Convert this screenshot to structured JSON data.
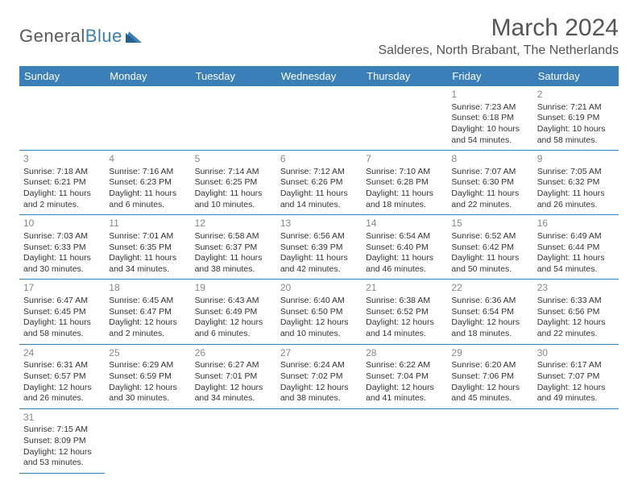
{
  "logo": {
    "text1": "General",
    "text2": "Blue"
  },
  "title": "March 2024",
  "location": "Salderes, North Brabant, The Netherlands",
  "colors": {
    "header_bg": "#3b7fb8",
    "header_fg": "#ffffff",
    "border": "#3b7fb8",
    "text": "#333333",
    "daynum": "#888888"
  },
  "weekdays": [
    "Sunday",
    "Monday",
    "Tuesday",
    "Wednesday",
    "Thursday",
    "Friday",
    "Saturday"
  ],
  "weeks": [
    [
      null,
      null,
      null,
      null,
      null,
      {
        "n": "1",
        "sr": "Sunrise: 7:23 AM",
        "ss": "Sunset: 6:18 PM",
        "dl": "Daylight: 10 hours and 54 minutes."
      },
      {
        "n": "2",
        "sr": "Sunrise: 7:21 AM",
        "ss": "Sunset: 6:19 PM",
        "dl": "Daylight: 10 hours and 58 minutes."
      }
    ],
    [
      {
        "n": "3",
        "sr": "Sunrise: 7:18 AM",
        "ss": "Sunset: 6:21 PM",
        "dl": "Daylight: 11 hours and 2 minutes."
      },
      {
        "n": "4",
        "sr": "Sunrise: 7:16 AM",
        "ss": "Sunset: 6:23 PM",
        "dl": "Daylight: 11 hours and 6 minutes."
      },
      {
        "n": "5",
        "sr": "Sunrise: 7:14 AM",
        "ss": "Sunset: 6:25 PM",
        "dl": "Daylight: 11 hours and 10 minutes."
      },
      {
        "n": "6",
        "sr": "Sunrise: 7:12 AM",
        "ss": "Sunset: 6:26 PM",
        "dl": "Daylight: 11 hours and 14 minutes."
      },
      {
        "n": "7",
        "sr": "Sunrise: 7:10 AM",
        "ss": "Sunset: 6:28 PM",
        "dl": "Daylight: 11 hours and 18 minutes."
      },
      {
        "n": "8",
        "sr": "Sunrise: 7:07 AM",
        "ss": "Sunset: 6:30 PM",
        "dl": "Daylight: 11 hours and 22 minutes."
      },
      {
        "n": "9",
        "sr": "Sunrise: 7:05 AM",
        "ss": "Sunset: 6:32 PM",
        "dl": "Daylight: 11 hours and 26 minutes."
      }
    ],
    [
      {
        "n": "10",
        "sr": "Sunrise: 7:03 AM",
        "ss": "Sunset: 6:33 PM",
        "dl": "Daylight: 11 hours and 30 minutes."
      },
      {
        "n": "11",
        "sr": "Sunrise: 7:01 AM",
        "ss": "Sunset: 6:35 PM",
        "dl": "Daylight: 11 hours and 34 minutes."
      },
      {
        "n": "12",
        "sr": "Sunrise: 6:58 AM",
        "ss": "Sunset: 6:37 PM",
        "dl": "Daylight: 11 hours and 38 minutes."
      },
      {
        "n": "13",
        "sr": "Sunrise: 6:56 AM",
        "ss": "Sunset: 6:39 PM",
        "dl": "Daylight: 11 hours and 42 minutes."
      },
      {
        "n": "14",
        "sr": "Sunrise: 6:54 AM",
        "ss": "Sunset: 6:40 PM",
        "dl": "Daylight: 11 hours and 46 minutes."
      },
      {
        "n": "15",
        "sr": "Sunrise: 6:52 AM",
        "ss": "Sunset: 6:42 PM",
        "dl": "Daylight: 11 hours and 50 minutes."
      },
      {
        "n": "16",
        "sr": "Sunrise: 6:49 AM",
        "ss": "Sunset: 6:44 PM",
        "dl": "Daylight: 11 hours and 54 minutes."
      }
    ],
    [
      {
        "n": "17",
        "sr": "Sunrise: 6:47 AM",
        "ss": "Sunset: 6:45 PM",
        "dl": "Daylight: 11 hours and 58 minutes."
      },
      {
        "n": "18",
        "sr": "Sunrise: 6:45 AM",
        "ss": "Sunset: 6:47 PM",
        "dl": "Daylight: 12 hours and 2 minutes."
      },
      {
        "n": "19",
        "sr": "Sunrise: 6:43 AM",
        "ss": "Sunset: 6:49 PM",
        "dl": "Daylight: 12 hours and 6 minutes."
      },
      {
        "n": "20",
        "sr": "Sunrise: 6:40 AM",
        "ss": "Sunset: 6:50 PM",
        "dl": "Daylight: 12 hours and 10 minutes."
      },
      {
        "n": "21",
        "sr": "Sunrise: 6:38 AM",
        "ss": "Sunset: 6:52 PM",
        "dl": "Daylight: 12 hours and 14 minutes."
      },
      {
        "n": "22",
        "sr": "Sunrise: 6:36 AM",
        "ss": "Sunset: 6:54 PM",
        "dl": "Daylight: 12 hours and 18 minutes."
      },
      {
        "n": "23",
        "sr": "Sunrise: 6:33 AM",
        "ss": "Sunset: 6:56 PM",
        "dl": "Daylight: 12 hours and 22 minutes."
      }
    ],
    [
      {
        "n": "24",
        "sr": "Sunrise: 6:31 AM",
        "ss": "Sunset: 6:57 PM",
        "dl": "Daylight: 12 hours and 26 minutes."
      },
      {
        "n": "25",
        "sr": "Sunrise: 6:29 AM",
        "ss": "Sunset: 6:59 PM",
        "dl": "Daylight: 12 hours and 30 minutes."
      },
      {
        "n": "26",
        "sr": "Sunrise: 6:27 AM",
        "ss": "Sunset: 7:01 PM",
        "dl": "Daylight: 12 hours and 34 minutes."
      },
      {
        "n": "27",
        "sr": "Sunrise: 6:24 AM",
        "ss": "Sunset: 7:02 PM",
        "dl": "Daylight: 12 hours and 38 minutes."
      },
      {
        "n": "28",
        "sr": "Sunrise: 6:22 AM",
        "ss": "Sunset: 7:04 PM",
        "dl": "Daylight: 12 hours and 41 minutes."
      },
      {
        "n": "29",
        "sr": "Sunrise: 6:20 AM",
        "ss": "Sunset: 7:06 PM",
        "dl": "Daylight: 12 hours and 45 minutes."
      },
      {
        "n": "30",
        "sr": "Sunrise: 6:17 AM",
        "ss": "Sunset: 7:07 PM",
        "dl": "Daylight: 12 hours and 49 minutes."
      }
    ],
    [
      {
        "n": "31",
        "sr": "Sunrise: 7:15 AM",
        "ss": "Sunset: 8:09 PM",
        "dl": "Daylight: 12 hours and 53 minutes."
      },
      null,
      null,
      null,
      null,
      null,
      null
    ]
  ]
}
